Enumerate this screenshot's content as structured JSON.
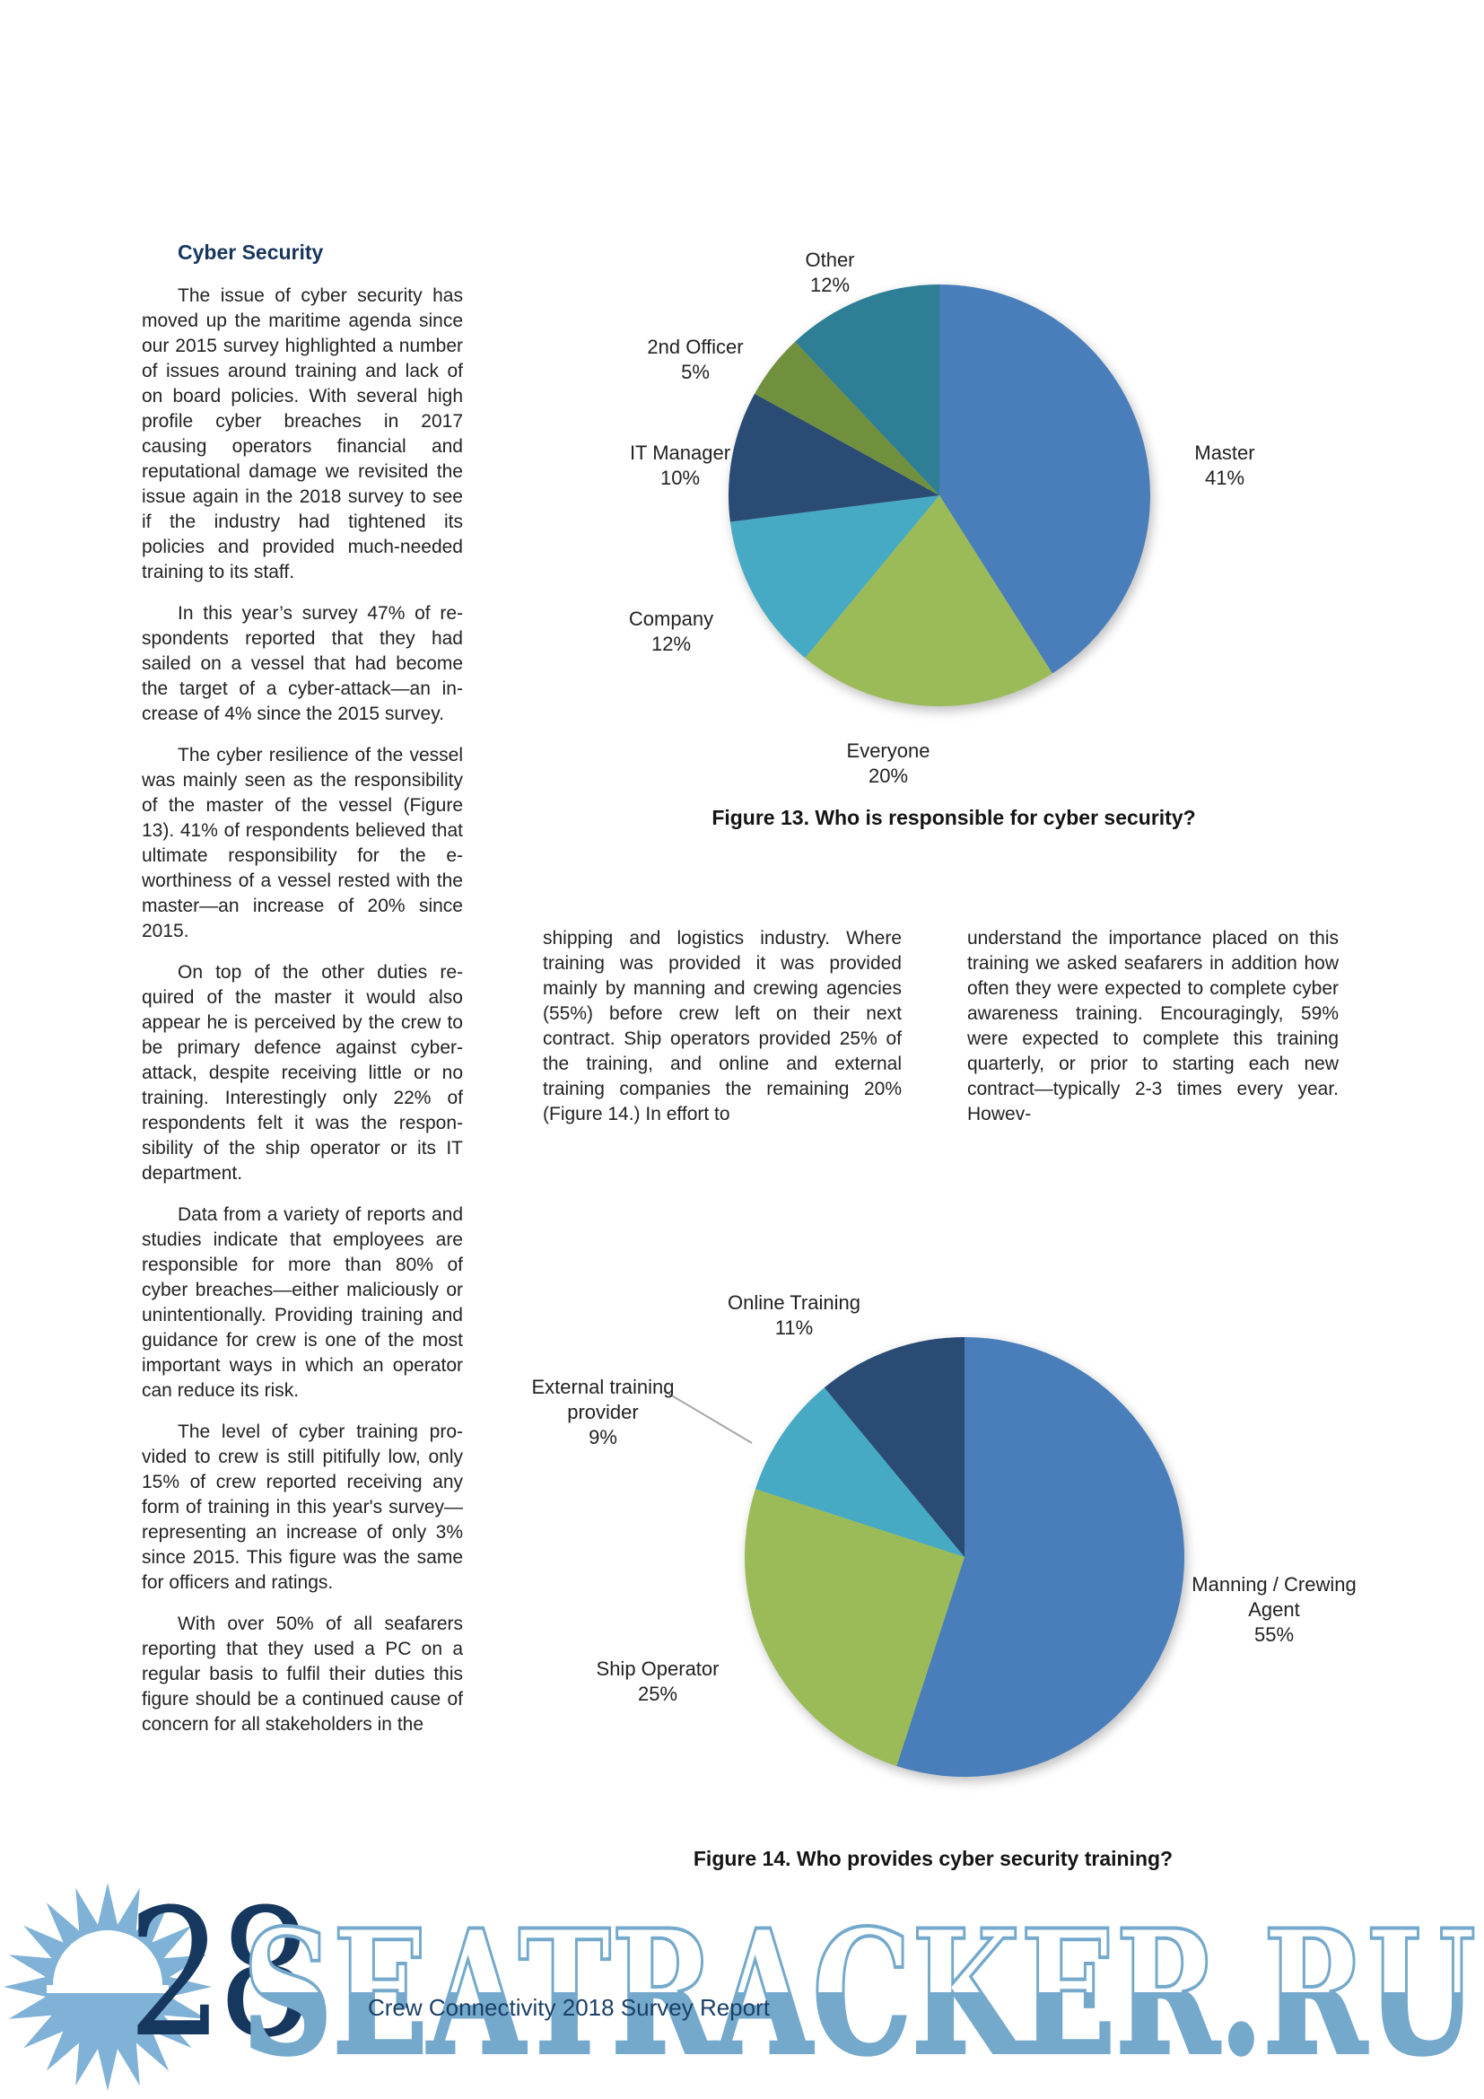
{
  "page": {
    "number": "28",
    "footer": "Crew Connectivity 2018 Survey Report",
    "watermark": "SEATRACKER.RU",
    "accent_colors": {
      "heading_navy": "#17365D",
      "watermark_blue": "#74A9CC",
      "sun_blue": "#7FB2D6",
      "page_number_navy": "#16375E"
    }
  },
  "article": {
    "heading": "Cyber Security",
    "col1_paragraphs": [
      "The issue of cyber security has moved up the maritime agenda since our 2015 survey highlighted a num­ber of issues around training and lack of on board policies. With sev­eral high profile cyber breaches in 2017 causing operators financial and reputational damage we revisited the issue again in the 2018 survey to see if the industry had tightened its policies and provided much-needed training to its staff.",
      "In this year’s survey 47% of re­spondents reported that they had sailed on a vessel that had become the target of a cyber-attack—an in­crease of 4% since the 2015 survey.",
      "The cyber resilience of the vessel was mainly seen as the responsibil­ity of the master of the vessel (Fig­ure 13). 41% of respondents believed that ultimate responsibility for the e-worthiness of a vessel rested with the master—an increase of 20% since 2015.",
      "On top of the other duties re­quired of the master it would also appear he is perceived by the crew to be primary defence against cyber-attack, despite receiving little or no training. Interestingly only 22% of respondents felt it was the respon­sibility of the ship operator or its IT department.",
      "Data from a variety of reports and studies indicate that employees are responsible for more than 80% of cyber breaches—either malici­ously or unintentionally. Providing training and guidance for crew is one of the most important ways in which an op­erator can reduce its risk.",
      "The level of cyber training pro­vided to crew is still pitifully low, only 15% of crew reported receiving any form of training in this year's sur­vey—representing an increase of only 3% since 2015.  This figure was the same for officers and ratings.",
      "With over 50% of all seafarers reporting that they used a PC on a regular basis to fulfil their duties this figure should be a continued cause of concern for all stakeholders in the"
    ],
    "col2_paragraph": "shipping and logistics industry.  Where training was provided it was provided mainly by manning and crewing agen­cies (55%) before crew left on their next contract. Ship operators provided 25% of the training, and online and external training companies the re­maining 20% (Figure 14.) In effort to",
    "col3_paragraph": "understand the importance placed on this training we asked seafarers in ad­dition how often they were expected to complete cyber awareness training. Encouragingly, 59% were expected to complete this training quarterly, or prior to starting each new contract—typically 2-3 times every year. Howev-"
  },
  "chart_data": [
    {
      "type": "pie",
      "title": "Figure 13. Who is responsible for cyber security?",
      "start_angle_deg": 0,
      "direction": "clockwise",
      "legend": "none",
      "labels_position": "outside, category name over percent",
      "slices": [
        {
          "label": "Master",
          "value": 41,
          "pct_label": "41%",
          "color": "#4A7EBA"
        },
        {
          "label": "Everyone",
          "value": 20,
          "pct_label": "20%",
          "color": "#9BBB59"
        },
        {
          "label": "Company",
          "value": 12,
          "pct_label": "12%",
          "color": "#46AAC5"
        },
        {
          "label": "IT Manager",
          "value": 10,
          "pct_label": "10%",
          "color": "#2A4B73"
        },
        {
          "label": "2nd Officer",
          "value": 5,
          "pct_label": "5%",
          "color": "#71903E"
        },
        {
          "label": "Other",
          "value": 12,
          "pct_label": "12%",
          "color": "#2E7F96"
        }
      ]
    },
    {
      "type": "pie",
      "title": "Figure 14. Who provides cyber security training?",
      "start_angle_deg": 0,
      "direction": "clockwise",
      "legend": "none",
      "labels_position": "outside, category name over percent; leader line to External training provider slice",
      "slices": [
        {
          "label": "Manning / Crewing Agent",
          "value": 55,
          "pct_label": "55%",
          "color": "#4A7EBA"
        },
        {
          "label": "Ship Operator",
          "value": 25,
          "pct_label": "25%",
          "color": "#9BBB59"
        },
        {
          "label": "External training provider",
          "value": 9,
          "pct_label": "9%",
          "color": "#46AAC5"
        },
        {
          "label": "Online Training",
          "value": 11,
          "pct_label": "11%",
          "color": "#2A4B73"
        }
      ]
    }
  ]
}
